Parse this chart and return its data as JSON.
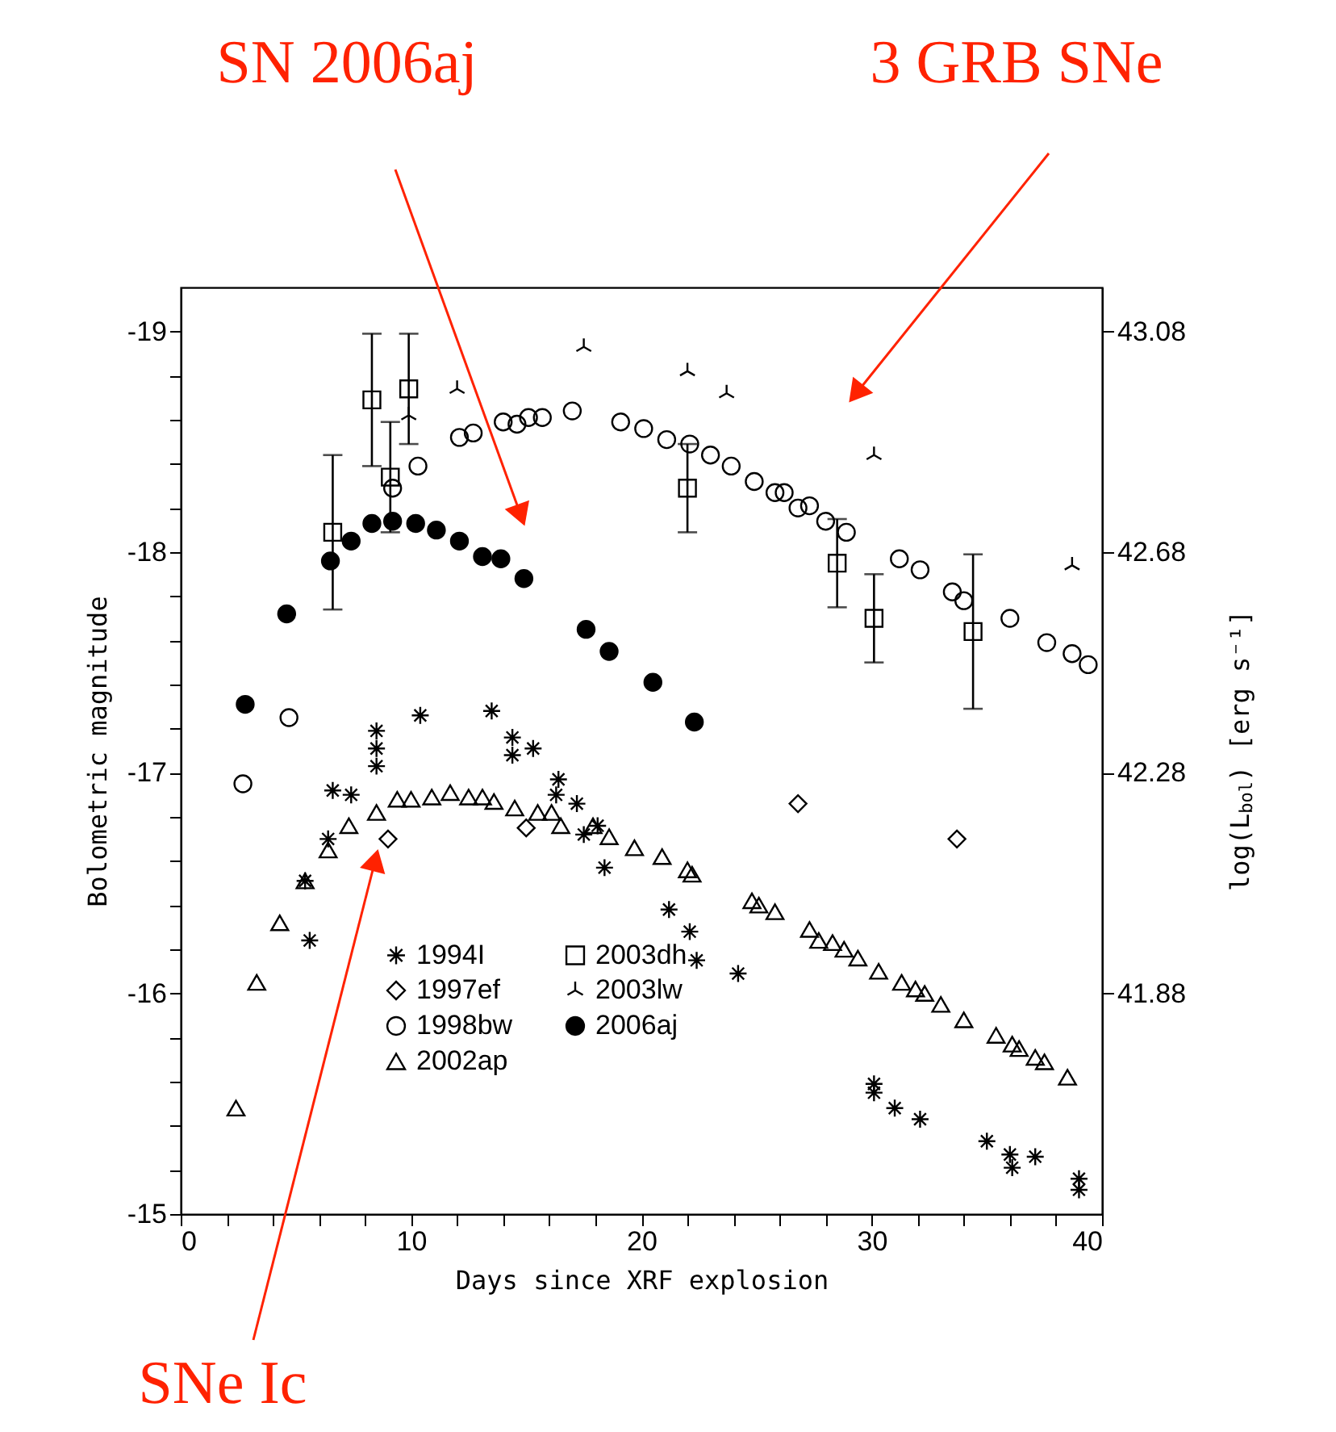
{
  "chart_data": {
    "type": "scatter",
    "xlabel": "Days since XRF explosion",
    "ylabel": "Bolometric magnitude",
    "y2label": "log(L$_{bol}$) [erg s⁻¹]",
    "xlim": [
      0,
      40
    ],
    "ylim": [
      -15,
      -19.2
    ],
    "y2lim": [
      41.48,
      43.16
    ],
    "xticks": [
      0,
      {
        "value": 2,
        "label": null
      },
      {
        "value": 4,
        "label": null
      },
      {
        "value": 6,
        "label": null
      },
      {
        "value": 8,
        "label": null
      },
      10,
      {
        "value": 12,
        "label": null
      },
      {
        "value": 14,
        "label": null
      },
      {
        "value": 16,
        "label": null
      },
      {
        "value": 18,
        "label": null
      },
      20,
      {
        "value": 22,
        "label": null
      },
      {
        "value": 24,
        "label": null
      },
      {
        "value": 26,
        "label": null
      },
      {
        "value": 28,
        "label": null
      },
      30,
      {
        "value": 32,
        "label": null
      },
      {
        "value": 34,
        "label": null
      },
      {
        "value": 36,
        "label": null
      },
      {
        "value": 38,
        "label": null
      },
      40
    ],
    "yticks": [
      -19,
      {
        "value": -18.8,
        "label": null
      },
      {
        "value": -18.6,
        "label": null
      },
      {
        "value": -18.4,
        "label": null
      },
      {
        "value": -18.2,
        "label": null
      },
      -18,
      {
        "value": -17.8,
        "label": null
      },
      {
        "value": -17.6,
        "label": null
      },
      {
        "value": -17.4,
        "label": null
      },
      {
        "value": -17.2,
        "label": null
      },
      -17,
      {
        "value": -16.8,
        "label": null
      },
      {
        "value": -16.6,
        "label": null
      },
      {
        "value": -16.4,
        "label": null
      },
      {
        "value": -16.2,
        "label": null
      },
      -16,
      {
        "value": -15.8,
        "label": null
      },
      {
        "value": -15.6,
        "label": null
      },
      {
        "value": -15.4,
        "label": null
      },
      {
        "value": -15.2,
        "label": null
      },
      -15
    ],
    "y2ticks": [
      43.08,
      42.68,
      42.28,
      41.88
    ],
    "grid": false,
    "legend": "bottom left",
    "annotations": [
      "SN 2006aj",
      "3 GRB SNe",
      "SNe Ic"
    ],
    "series": [
      {
        "name": "1994I",
        "color": "#000000",
        "marker": "cross",
        "x": [
          5.4,
          5.6,
          6.4,
          6.6,
          7.4,
          8.5,
          8.5,
          8.5,
          10.4,
          13.5,
          14.4,
          14.4,
          15.3,
          16.3,
          16.4,
          17.2,
          17.5,
          18.1,
          18.4,
          21.2,
          22.1,
          22.4,
          24.2,
          30.1,
          30.1,
          31.0,
          32.1,
          35.0,
          36.0,
          36.1,
          37.1,
          39.0,
          39.0
        ],
        "values": [
          -16.51,
          -16.24,
          -16.7,
          -16.92,
          -16.9,
          -17.19,
          -17.11,
          -17.03,
          -17.26,
          -17.28,
          -17.16,
          -17.08,
          -17.11,
          -16.9,
          -16.97,
          -16.86,
          -16.72,
          -16.76,
          -16.57,
          -16.38,
          -16.28,
          -16.15,
          -16.09,
          -15.59,
          -15.55,
          -15.48,
          -15.43,
          -15.33,
          -15.27,
          -15.21,
          -15.26,
          -15.16,
          -15.11
        ]
      },
      {
        "name": "1997ef",
        "color": "#000000",
        "marker": "diamond",
        "x": [
          9.0,
          15.0,
          26.8,
          33.7
        ],
        "values": [
          -16.7,
          -16.75,
          -16.86,
          -16.7
        ]
      },
      {
        "name": "1998bw",
        "color": "#000000",
        "marker": "circle",
        "x": [
          2.7,
          4.7,
          9.2,
          10.3,
          12.1,
          12.7,
          14.0,
          14.6,
          15.1,
          15.7,
          17.0,
          19.1,
          20.1,
          21.1,
          22.1,
          23.0,
          23.9,
          24.9,
          25.8,
          26.2,
          26.8,
          27.3,
          28.0,
          28.9,
          31.2,
          32.1,
          33.5,
          34.0,
          36.0,
          37.6,
          38.7,
          39.4
        ],
        "values": [
          -16.95,
          -17.25,
          -18.29,
          -18.39,
          -18.52,
          -18.54,
          -18.59,
          -18.58,
          -18.61,
          -18.61,
          -18.64,
          -18.59,
          -18.56,
          -18.51,
          -18.49,
          -18.44,
          -18.39,
          -18.32,
          -18.27,
          -18.27,
          -18.2,
          -18.21,
          -18.14,
          -18.09,
          -17.97,
          -17.92,
          -17.82,
          -17.78,
          -17.7,
          -17.59,
          -17.54,
          -17.49
        ]
      },
      {
        "name": "2002ap",
        "color": "#000000",
        "marker": "triangle",
        "x": [
          2.4,
          3.3,
          4.3,
          5.4,
          6.4,
          7.3,
          8.5,
          9.4,
          10.0,
          10.9,
          11.7,
          12.5,
          13.1,
          13.6,
          14.5,
          15.5,
          16.1,
          16.5,
          17.9,
          18.6,
          19.7,
          20.9,
          22.0,
          22.2,
          24.8,
          25.1,
          25.8,
          27.3,
          27.7,
          28.3,
          28.8,
          29.4,
          30.3,
          31.3,
          31.9,
          32.3,
          33.0,
          34.0,
          35.4,
          36.1,
          36.4,
          37.1,
          37.5,
          38.5
        ],
        "values": [
          -15.48,
          -16.05,
          -16.32,
          -16.51,
          -16.65,
          -16.76,
          -16.82,
          -16.88,
          -16.88,
          -16.89,
          -16.91,
          -16.89,
          -16.89,
          -16.87,
          -16.84,
          -16.82,
          -16.82,
          -16.76,
          -16.76,
          -16.71,
          -16.66,
          -16.62,
          -16.56,
          -16.54,
          -16.42,
          -16.4,
          -16.37,
          -16.29,
          -16.24,
          -16.23,
          -16.2,
          -16.16,
          -16.1,
          -16.05,
          -16.02,
          -16.0,
          -15.95,
          -15.88,
          -15.81,
          -15.77,
          -15.75,
          -15.71,
          -15.69,
          -15.62
        ]
      },
      {
        "name": "2003dh",
        "color": "#000000",
        "marker": "square",
        "x": [
          6.6,
          8.3,
          9.1,
          9.9,
          22.0,
          28.5,
          30.1,
          34.4
        ],
        "values": [
          -18.09,
          -18.69,
          -18.34,
          -18.74,
          -18.29,
          -17.95,
          -17.7,
          -17.64
        ],
        "errors": [
          0.35,
          0.3,
          0.25,
          0.25,
          0.2,
          0.2,
          0.2,
          0.35
        ]
      },
      {
        "name": "2003lw",
        "color": "#000000",
        "marker": "cross",
        "x": [
          9.9,
          12.0,
          17.5,
          22.0,
          23.7,
          30.1,
          38.7
        ],
        "values": [
          -18.62,
          -18.74,
          -18.93,
          -18.82,
          -18.72,
          -18.44,
          -17.94
        ]
      },
      {
        "name": "2006aj",
        "color": "#000000",
        "marker": "circle",
        "x": [
          2.8,
          4.6,
          6.5,
          7.4,
          8.3,
          9.2,
          10.2,
          11.1,
          12.1,
          13.1,
          13.9,
          14.9,
          17.6,
          18.6,
          20.5,
          22.3
        ],
        "values": [
          -17.31,
          -17.72,
          -17.96,
          -18.05,
          -18.13,
          -18.14,
          -18.13,
          -18.1,
          -18.05,
          -17.98,
          -17.97,
          -17.88,
          -17.65,
          -17.55,
          -17.41,
          -17.23
        ]
      }
    ]
  }
}
